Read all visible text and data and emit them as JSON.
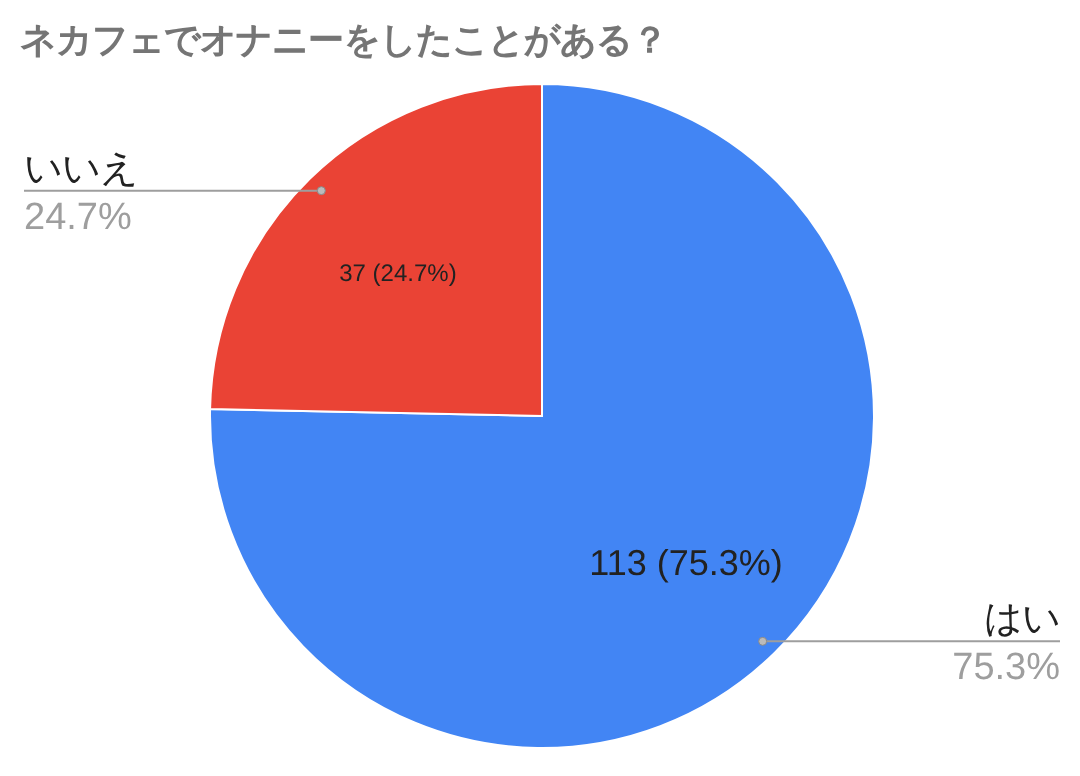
{
  "chart_data": {
    "type": "pie",
    "title": "ネカフェでオナニーをしたことがある？",
    "categories": [
      "はい",
      "いいえ"
    ],
    "values": [
      113,
      37
    ],
    "colors": [
      "#4285f4",
      "#ea4335"
    ],
    "value_labels": [
      "113 (75.3%)",
      "37 (24.7%)"
    ],
    "annotations": [
      "75.3%",
      "24.7%"
    ]
  }
}
